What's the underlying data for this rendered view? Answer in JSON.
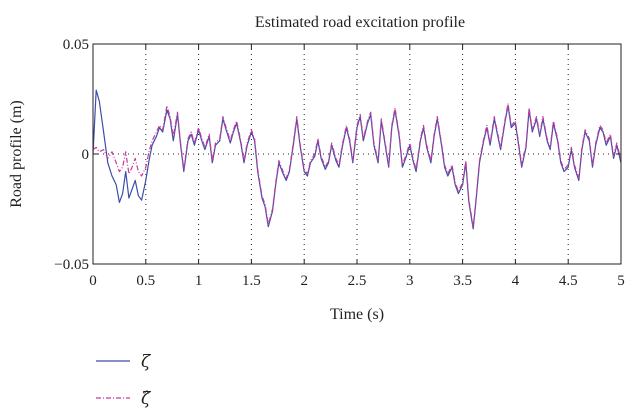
{
  "chart_data": {
    "type": "line",
    "title": "Estimated road excitation profile",
    "xlabel": "Time (s)",
    "ylabel": "Road profile (m)",
    "xlim": [
      0,
      5
    ],
    "ylim": [
      -0.05,
      0.05
    ],
    "x_ticks": [
      0,
      0.5,
      1,
      1.5,
      2,
      2.5,
      3,
      3.5,
      4,
      4.5,
      5
    ],
    "x_tick_labels": [
      "0",
      "0.5",
      "1",
      "1.5",
      "2",
      "2.5",
      "3",
      "3.5",
      "4",
      "4.5",
      "5"
    ],
    "y_ticks": [
      -0.05,
      0,
      0.05
    ],
    "y_tick_labels": [
      "−0.05",
      "0",
      "0.05"
    ],
    "grid": "vertical dotted at x ticks, horizontal dotted at y = 0",
    "legend_position": "below plot, left",
    "series": [
      {
        "name": "ζ",
        "color": "#3b4fa8",
        "style": "solid",
        "x": [
          0,
          0.03,
          0.06,
          0.1,
          0.14,
          0.18,
          0.22,
          0.25,
          0.28,
          0.31,
          0.34,
          0.37,
          0.4,
          0.43,
          0.46,
          0.5,
          0.53,
          0.56,
          0.6,
          0.63,
          0.66,
          0.7,
          0.73,
          0.76,
          0.8,
          0.83,
          0.86,
          0.9,
          0.93,
          0.96,
          1,
          1.03,
          1.06,
          1.1,
          1.13,
          1.16,
          1.2,
          1.23,
          1.26,
          1.3,
          1.33,
          1.36,
          1.4,
          1.43,
          1.46,
          1.5,
          1.53,
          1.56,
          1.6,
          1.63,
          1.66,
          1.7,
          1.73,
          1.76,
          1.8,
          1.83,
          1.86,
          1.9,
          1.93,
          1.96,
          2,
          2.03,
          2.06,
          2.1,
          2.13,
          2.16,
          2.2,
          2.23,
          2.26,
          2.3,
          2.33,
          2.36,
          2.4,
          2.43,
          2.46,
          2.5,
          2.53,
          2.56,
          2.6,
          2.63,
          2.66,
          2.7,
          2.73,
          2.76,
          2.8,
          2.83,
          2.86,
          2.9,
          2.93,
          2.96,
          3,
          3.03,
          3.06,
          3.1,
          3.13,
          3.16,
          3.2,
          3.23,
          3.26,
          3.3,
          3.33,
          3.36,
          3.4,
          3.43,
          3.46,
          3.5,
          3.53,
          3.56,
          3.6,
          3.63,
          3.66,
          3.7,
          3.73,
          3.76,
          3.8,
          3.83,
          3.86,
          3.9,
          3.93,
          3.96,
          4,
          4.03,
          4.06,
          4.1,
          4.13,
          4.16,
          4.2,
          4.23,
          4.26,
          4.3,
          4.33,
          4.36,
          4.4,
          4.43,
          4.46,
          4.5,
          4.53,
          4.56,
          4.6,
          4.63,
          4.66,
          4.7,
          4.73,
          4.76,
          4.8,
          4.83,
          4.86,
          4.9,
          4.93,
          4.96,
          5
        ],
        "y": [
          0,
          0.029,
          0.024,
          0.01,
          -0.004,
          -0.01,
          -0.014,
          -0.022,
          -0.018,
          -0.008,
          -0.02,
          -0.016,
          -0.012,
          -0.019,
          -0.021,
          -0.012,
          -0.003,
          0.004,
          0.008,
          0.012,
          0.01,
          0.02,
          0.016,
          0.006,
          0.018,
          0.004,
          -0.008,
          0.006,
          0.009,
          0.004,
          0.011,
          0.006,
          0.002,
          0.008,
          -0.004,
          0.004,
          0.006,
          0.016,
          0.011,
          0.005,
          0.01,
          0.014,
          0.005,
          -0.004,
          0.004,
          0.01,
          0.006,
          -0.008,
          -0.02,
          -0.024,
          -0.033,
          -0.026,
          -0.014,
          -0.004,
          -0.009,
          -0.012,
          -0.008,
          0.005,
          0.016,
          0.004,
          -0.008,
          -0.01,
          -0.004,
          -0.001,
          0.006,
          -0.002,
          -0.007,
          -0.004,
          0.004,
          -0.003,
          -0.006,
          0.003,
          0.012,
          0.006,
          -0.004,
          0.012,
          0.017,
          0.006,
          0.014,
          0.018,
          0.004,
          -0.004,
          0.015,
          0.006,
          -0.006,
          0.012,
          0.02,
          0.008,
          -0.006,
          -0.002,
          0.004,
          -0.003,
          -0.008,
          0.006,
          0.012,
          0.003,
          -0.004,
          0.008,
          0.016,
          0.004,
          -0.006,
          -0.01,
          -0.006,
          -0.014,
          -0.018,
          -0.014,
          -0.004,
          -0.022,
          -0.034,
          -0.02,
          -0.004,
          0.006,
          0.012,
          0.004,
          0.016,
          0.009,
          0.002,
          0.014,
          0.022,
          0.012,
          0.014,
          0.004,
          -0.006,
          0.003,
          0.02,
          0.01,
          0.016,
          0.008,
          0.016,
          0.006,
          0.002,
          0.014,
          0.006,
          -0.004,
          -0.008,
          -0.006,
          0.002,
          -0.006,
          -0.012,
          0.002,
          0.01,
          0.006,
          -0.006,
          0.004,
          0.012,
          0.01,
          0.004,
          0.008,
          -0.002,
          0.004,
          -0.004
        ]
      },
      {
        "name": "ζ̂",
        "color": "#c8399a",
        "style": "dash-dot",
        "x": [
          0,
          0.03,
          0.06,
          0.1,
          0.14,
          0.18,
          0.22,
          0.25,
          0.28,
          0.31,
          0.34,
          0.37,
          0.4,
          0.43,
          0.46,
          0.5,
          0.53,
          0.56,
          0.6,
          0.63,
          0.66,
          0.7,
          0.73,
          0.76,
          0.8,
          0.83,
          0.86,
          0.9,
          0.93,
          0.96,
          1,
          1.03,
          1.06,
          1.1,
          1.13,
          1.16,
          1.2,
          1.23,
          1.26,
          1.3,
          1.33,
          1.36,
          1.4,
          1.43,
          1.46,
          1.5,
          1.53,
          1.56,
          1.6,
          1.63,
          1.66,
          1.7,
          1.73,
          1.76,
          1.8,
          1.83,
          1.86,
          1.9,
          1.93,
          1.96,
          2,
          2.03,
          2.06,
          2.1,
          2.13,
          2.16,
          2.2,
          2.23,
          2.26,
          2.3,
          2.33,
          2.36,
          2.4,
          2.43,
          2.46,
          2.5,
          2.53,
          2.56,
          2.6,
          2.63,
          2.66,
          2.7,
          2.73,
          2.76,
          2.8,
          2.83,
          2.86,
          2.9,
          2.93,
          2.96,
          3,
          3.03,
          3.06,
          3.1,
          3.13,
          3.16,
          3.2,
          3.23,
          3.26,
          3.3,
          3.33,
          3.36,
          3.4,
          3.43,
          3.46,
          3.5,
          3.53,
          3.56,
          3.6,
          3.63,
          3.66,
          3.7,
          3.73,
          3.76,
          3.8,
          3.83,
          3.86,
          3.9,
          3.93,
          3.96,
          4,
          4.03,
          4.06,
          4.1,
          4.13,
          4.16,
          4.2,
          4.23,
          4.26,
          4.3,
          4.33,
          4.36,
          4.4,
          4.43,
          4.46,
          4.5,
          4.53,
          4.56,
          4.6,
          4.63,
          4.66,
          4.7,
          4.73,
          4.76,
          4.8,
          4.83,
          4.86,
          4.9,
          4.93,
          4.96,
          5
        ],
        "y": [
          0.002,
          0.003,
          0.001,
          0.002,
          -0.002,
          0.001,
          -0.004,
          -0.008,
          -0.006,
          0.001,
          -0.009,
          -0.006,
          -0.002,
          -0.008,
          -0.01,
          -0.006,
          0.001,
          0.006,
          0.01,
          0.013,
          0.011,
          0.022,
          0.017,
          0.008,
          0.019,
          0.005,
          -0.007,
          0.007,
          0.01,
          0.005,
          0.012,
          0.007,
          0.003,
          0.009,
          -0.003,
          0.005,
          0.007,
          0.017,
          0.012,
          0.006,
          0.011,
          0.015,
          0.006,
          -0.003,
          0.005,
          0.011,
          0.007,
          -0.007,
          -0.019,
          -0.023,
          -0.032,
          -0.025,
          -0.013,
          -0.003,
          -0.008,
          -0.011,
          -0.007,
          0.006,
          0.017,
          0.005,
          -0.007,
          -0.009,
          -0.003,
          0,
          0.007,
          -0.001,
          -0.006,
          -0.003,
          0.005,
          -0.002,
          -0.005,
          0.004,
          0.013,
          0.007,
          -0.003,
          0.013,
          0.018,
          0.007,
          0.015,
          0.019,
          0.005,
          -0.003,
          0.016,
          0.007,
          -0.005,
          0.013,
          0.021,
          0.009,
          -0.005,
          -0.001,
          0.005,
          -0.002,
          -0.007,
          0.007,
          0.013,
          0.004,
          -0.003,
          0.009,
          0.017,
          0.005,
          -0.005,
          -0.009,
          -0.005,
          -0.013,
          -0.017,
          -0.013,
          -0.003,
          -0.021,
          -0.033,
          -0.019,
          -0.003,
          0.007,
          0.013,
          0.005,
          0.017,
          0.01,
          0.003,
          0.015,
          0.023,
          0.013,
          0.015,
          0.005,
          -0.005,
          0.004,
          0.021,
          0.011,
          0.017,
          0.009,
          0.017,
          0.007,
          0.003,
          0.015,
          0.007,
          -0.003,
          -0.007,
          -0.005,
          0.003,
          -0.005,
          -0.011,
          0.003,
          0.011,
          0.007,
          -0.005,
          0.005,
          0.013,
          0.011,
          0.005,
          0.009,
          -0.001,
          0.005,
          -0.003
        ]
      }
    ]
  },
  "legend": {
    "items": [
      {
        "symbol": "ζ",
        "color": "#3b4fa8",
        "style": "solid"
      },
      {
        "symbol": "ζ̂",
        "color": "#c8399a",
        "style": "dash-dot"
      }
    ]
  }
}
